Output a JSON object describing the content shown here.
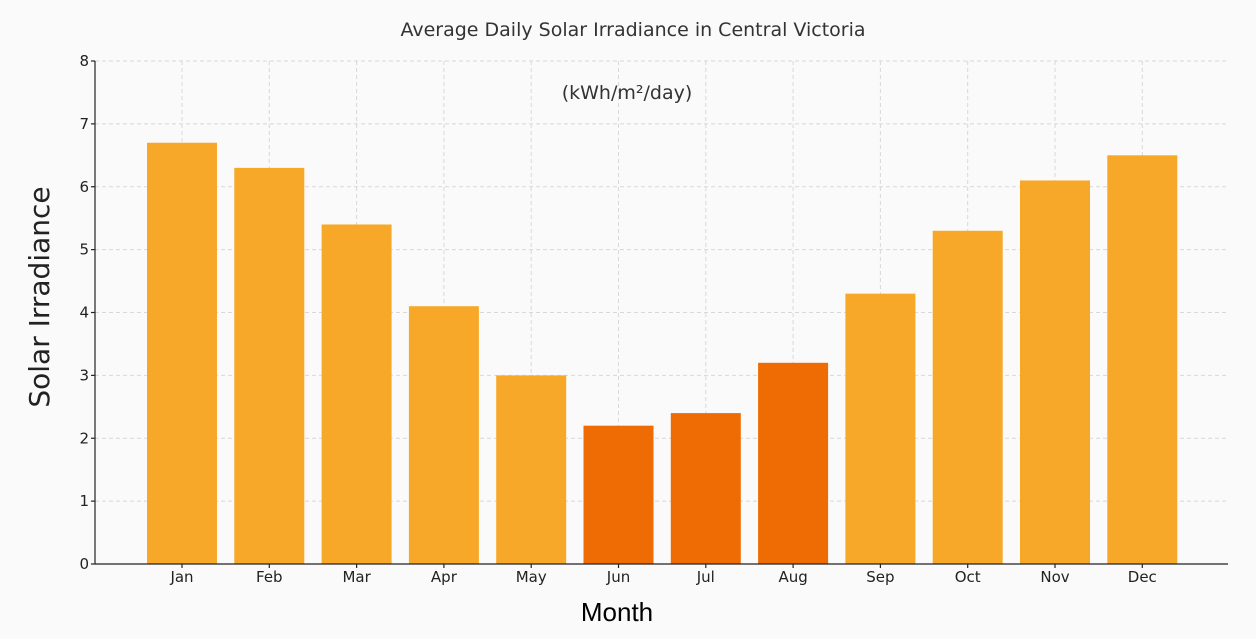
{
  "chart_data": {
    "type": "bar",
    "title": "Average Daily Solar Irradiance in Central Victoria",
    "subtitle": "(kWh/m²/day)",
    "xlabel": "Month",
    "ylabel": "Solar Irradiance",
    "categories": [
      "Jan",
      "Feb",
      "Mar",
      "Apr",
      "May",
      "Jun",
      "Jul",
      "Aug",
      "Sep",
      "Oct",
      "Nov",
      "Dec"
    ],
    "values": [
      6.7,
      6.3,
      5.4,
      4.1,
      3.0,
      2.2,
      2.4,
      3.2,
      4.3,
      5.3,
      6.1,
      6.5
    ],
    "bar_colors": [
      "#f8a828",
      "#f8a828",
      "#f8a828",
      "#f8a828",
      "#f8a828",
      "#ee6c03",
      "#ee6c03",
      "#ee6c03",
      "#f8a828",
      "#f8a828",
      "#f8a828",
      "#f8a828"
    ],
    "ylim": [
      0,
      8
    ],
    "yticks": [
      0,
      1,
      2,
      3,
      4,
      5,
      6,
      7,
      8
    ],
    "grid": true
  }
}
